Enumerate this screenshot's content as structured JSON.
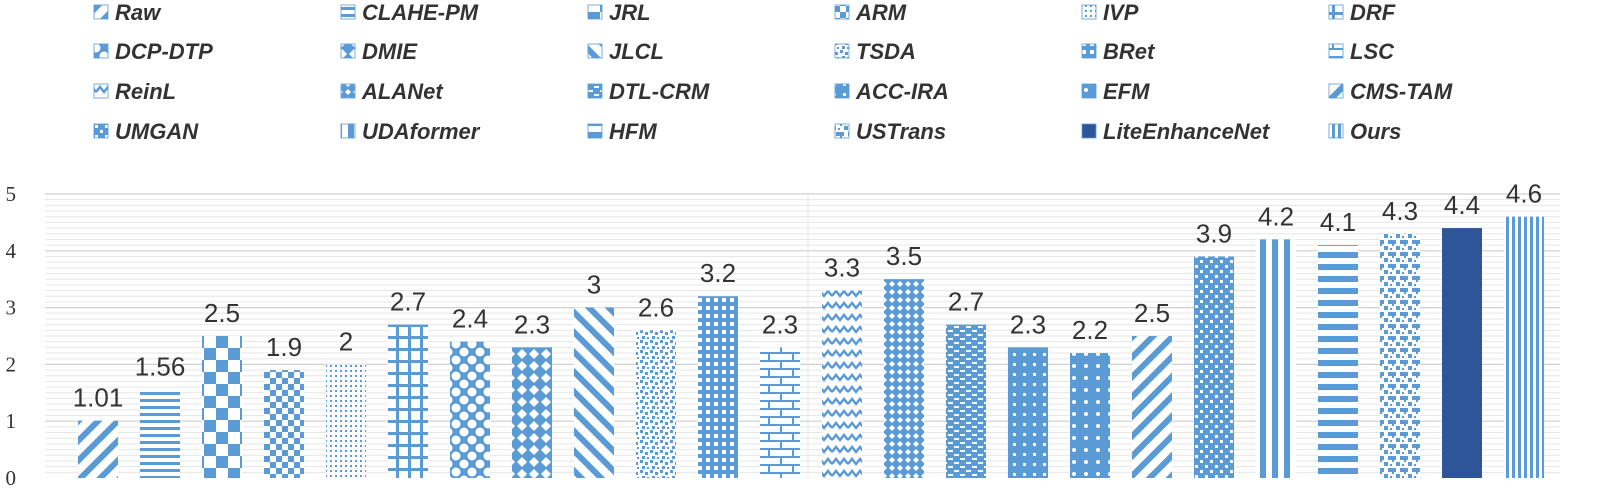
{
  "chart_data": {
    "type": "bar",
    "title": "",
    "xlabel": "",
    "ylabel": "",
    "ylim": [
      0,
      5
    ],
    "yticks": [
      0,
      1,
      2,
      3,
      4,
      5
    ],
    "legend_position": "top",
    "grid": true,
    "colors": {
      "bar": "#5b9bd5",
      "solid": "#2e5597",
      "text": "#333333",
      "grid": "#d9d9d9"
    },
    "categories": [
      "Raw",
      "CLAHE-PM",
      "JRL",
      "ARM",
      "IVP",
      "DRF",
      "DCP-DTP",
      "DMIE",
      "JLCL",
      "TSDA",
      "BRet",
      "LSC",
      "ReinL",
      "ALANet",
      "DTL-CRM",
      "ACC-IRA",
      "EFM",
      "CMS-TAM",
      "UMGAN",
      "UDAformer",
      "HFM",
      "USTrans",
      "LiteEnhanceNet",
      "Ours"
    ],
    "values": [
      1.01,
      1.56,
      2.5,
      1.9,
      2,
      2.7,
      2.4,
      2.3,
      3,
      2.6,
      3.2,
      2.3,
      3.3,
      3.5,
      2.7,
      2.3,
      2.2,
      2.5,
      3.9,
      4.2,
      4.1,
      4.3,
      4.4,
      4.6
    ],
    "value_labels": [
      "1.01",
      "1.56",
      "2.5",
      "1.9",
      "2",
      "2.7",
      "2.4",
      "2.3",
      "3",
      "2.6",
      "3.2",
      "2.3",
      "3.3",
      "3.5",
      "2.7",
      "2.3",
      "2.2",
      "2.5",
      "3.9",
      "4.2",
      "4.1",
      "4.3",
      "4.4",
      "4.6"
    ],
    "patterns": [
      "wdiagR",
      "hlines",
      "checkerBig",
      "checkerSmall",
      "dotsFine",
      "grid",
      "circles",
      "diamonds",
      "wdiagL",
      "confetti",
      "smallGrid",
      "bricks",
      "zigzag",
      "diamondsSmall",
      "hdash",
      "dotsGrid",
      "dotsLarge",
      "wdiagR",
      "trellis",
      "vlinesWide",
      "hlinesThick",
      "weave",
      "solid",
      "vlinesNarrow"
    ]
  }
}
